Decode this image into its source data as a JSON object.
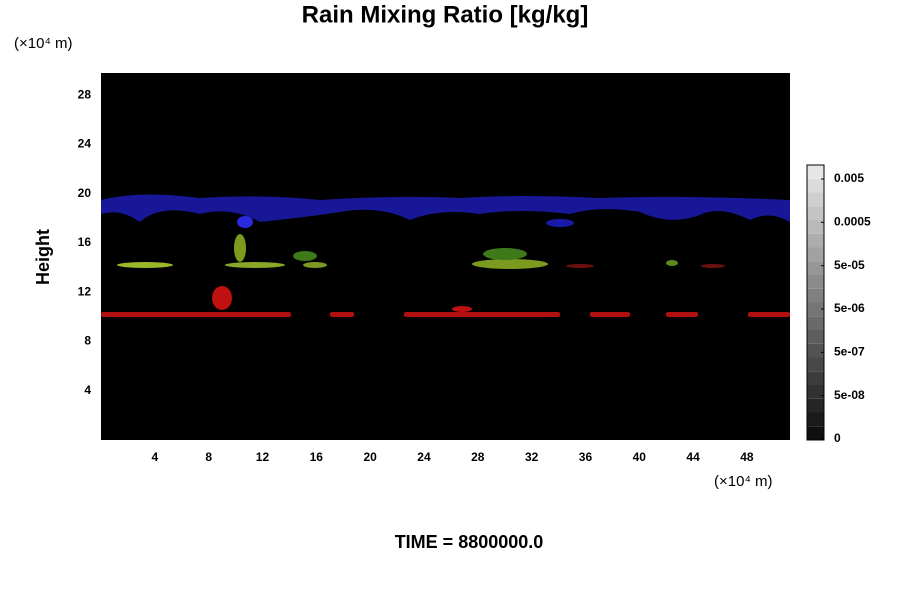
{
  "chart_data": {
    "type": "heatmap",
    "title": "Rain Mixing Ratio [kg/kg]",
    "x_unit": "(×10⁴ m)",
    "y_unit": "(×10⁴ m)",
    "y_label": "Height",
    "xlim": [
      0,
      51.2
    ],
    "xticks": [
      4,
      8,
      12,
      16,
      20,
      24,
      28,
      32,
      36,
      40,
      44,
      48
    ],
    "ylim": [
      0,
      29.8
    ],
    "yticks": [
      4,
      8,
      12,
      16,
      20,
      24,
      28
    ],
    "colorbar_ticks": [
      0,
      {
        "value": 5e-08,
        "label": "5e-08"
      },
      {
        "value": 5e-07,
        "label": "5e-07"
      },
      {
        "value": 5e-06,
        "label": "5e-06"
      },
      {
        "value": 5e-05,
        "label": "5e-05"
      },
      0.0005,
      0.005
    ],
    "footer": "TIME = 8800000.0"
  }
}
